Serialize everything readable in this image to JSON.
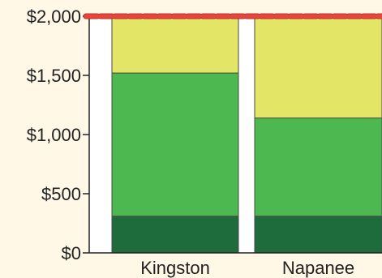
{
  "chart_data": {
    "type": "bar",
    "stacked": true,
    "categories": [
      "Kingston",
      "Napanee"
    ],
    "series": [
      {
        "color": "#1E6B3C",
        "values": [
          310,
          310
        ]
      },
      {
        "color": "#4CB84F",
        "values": [
          1210,
          830
        ]
      },
      {
        "color": "#E3E566",
        "values": [
          480,
          860
        ]
      }
    ],
    "y_ticks": [
      {
        "value": 0,
        "label": "$0"
      },
      {
        "value": 500,
        "label": "$500"
      },
      {
        "value": 1000,
        "label": "$1,000"
      },
      {
        "value": 1500,
        "label": "$1,500"
      },
      {
        "value": 2000,
        "label": "$2,000"
      }
    ],
    "ylim": [
      0,
      2000
    ],
    "reference_line": {
      "value": 2000,
      "color": "#E8463C",
      "style": "dashed"
    },
    "grid": false
  }
}
